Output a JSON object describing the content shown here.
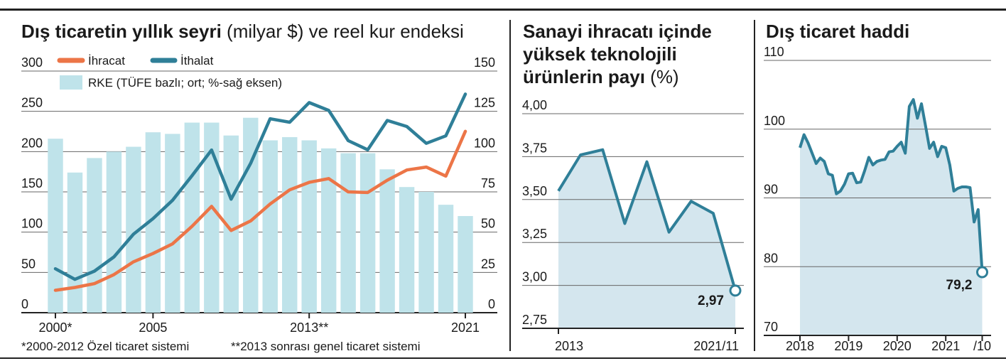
{
  "colors": {
    "export_line": "#ec7547",
    "import_line": "#2f7f98",
    "rke_bar": "#bfe3ea",
    "area_fill": "#d4e6ee",
    "grid": "#666666",
    "frame": "#222222"
  },
  "chart_data": [
    {
      "type": "bar+line",
      "title": "Dış ticaretin yıllık seyri",
      "title_suffix": "(milyar $) ve reel kur endeksi",
      "x": [
        2000,
        2001,
        2002,
        2003,
        2004,
        2005,
        2006,
        2007,
        2008,
        2009,
        2010,
        2011,
        2012,
        2013,
        2014,
        2015,
        2016,
        2017,
        2018,
        2019,
        2020,
        2021
      ],
      "x_tick_labels": [
        "2000*",
        "2005",
        "2013**",
        "2021"
      ],
      "left_axis": {
        "ylim": [
          0,
          300
        ],
        "ticks": [
          "0",
          "50",
          "100",
          "150",
          "200",
          "250",
          "300"
        ]
      },
      "right_axis": {
        "ylim": [
          0,
          150
        ],
        "ticks": [
          "0",
          "25",
          "50",
          "75",
          "100",
          "125",
          "150"
        ]
      },
      "series": [
        {
          "name": "İhracat",
          "axis": "left",
          "kind": "line",
          "color": "#ec7547",
          "values": [
            27.8,
            31.3,
            36.1,
            47.3,
            63.2,
            73.5,
            85.5,
            107.3,
            132.0,
            102.1,
            113.9,
            134.9,
            152.5,
            161.8,
            166.5,
            150.0,
            149.2,
            164.5,
            177.2,
            180.8,
            169.6,
            225.2
          ]
        },
        {
          "name": "İthalat",
          "axis": "left",
          "kind": "line",
          "color": "#2f7f98",
          "values": [
            54.5,
            41.4,
            51.6,
            69.3,
            97.5,
            116.8,
            139.6,
            170.1,
            202.0,
            140.9,
            185.5,
            240.8,
            236.5,
            260.8,
            251.1,
            213.6,
            202.2,
            238.7,
            231.2,
            210.3,
            219.5,
            271.4
          ]
        },
        {
          "name": "RKE (TÜFE bazlı; ort; %-sağ eksen)",
          "axis": "right",
          "kind": "bar",
          "color": "#bfe3ea",
          "values": [
            108,
            87,
            96,
            100,
            103,
            112,
            111,
            118,
            118,
            110,
            121,
            107,
            109,
            107,
            102,
            99,
            99,
            89,
            78,
            75,
            67,
            60
          ]
        }
      ],
      "legend": [
        "İhracat",
        "İthalat",
        "RKE (TÜFE bazlı; ort; %-sağ eksen)"
      ],
      "notes": [
        "*2000-2012 Özel ticaret sistemi",
        "**2013 sonrası genel ticaret sistemi"
      ]
    },
    {
      "type": "area",
      "title_lines": [
        "Sanayi ihracatı içinde",
        "yüksek teknolojili"
      ],
      "title_last_bold": "ürünlerin payı",
      "title_last_unit": "(%)",
      "x": [
        "2013",
        "2014",
        "2015",
        "2016",
        "2017",
        "2018",
        "2019",
        "2020",
        "2021/11"
      ],
      "x_tick_labels": [
        "2013",
        "2021/11"
      ],
      "ylim": [
        2.75,
        4.0
      ],
      "y_ticks": [
        "2,75",
        "3,00",
        "3,25",
        "3,50",
        "3,75",
        "4,00"
      ],
      "values": [
        3.55,
        3.76,
        3.79,
        3.36,
        3.72,
        3.31,
        3.49,
        3.42,
        2.97
      ],
      "last_label": "2,97",
      "color": "#2f7f98"
    },
    {
      "type": "area",
      "title": "Dış ticaret haddi",
      "x_tick_labels": [
        "2018",
        "2019",
        "2020",
        "2021",
        "/10"
      ],
      "x_start": 2018.0,
      "ylim": [
        70,
        110
      ],
      "y_ticks": [
        "70",
        "80",
        "90",
        "100",
        "110"
      ],
      "values": [
        97.3,
        99.2,
        98.0,
        96.5,
        95.0,
        95.8,
        95.3,
        93.5,
        93.3,
        90.6,
        91.0,
        92.0,
        93.5,
        93.6,
        92.2,
        92.3,
        94.0,
        95.9,
        94.8,
        95.3,
        95.5,
        95.6,
        96.7,
        96.8,
        97.5,
        98.1,
        96.5,
        103.3,
        104.3,
        101.6,
        103.7,
        100.5,
        97.2,
        98.1,
        96.0,
        97.5,
        97.3,
        94.8,
        91.0,
        91.4,
        91.6,
        91.6,
        91.5,
        86.5,
        88.3,
        79.2
      ],
      "last_label": "79,2",
      "color": "#2f7f98"
    }
  ]
}
